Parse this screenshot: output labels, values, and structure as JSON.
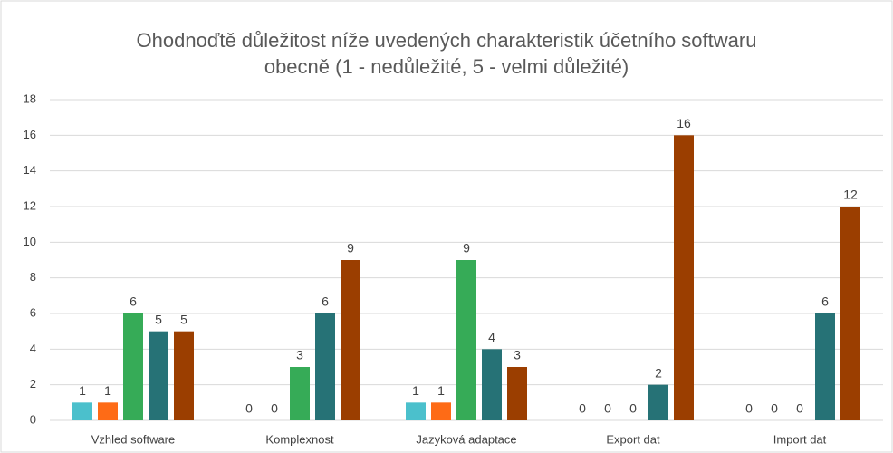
{
  "chart_data": {
    "type": "bar",
    "title": "Ohodnoďtě důležitost níže uvedených charakteristik účetního softwaru obecně (1 - nedůležité, 5 - velmi důležité)",
    "categories": [
      "Vzhled software",
      "Komplexnost",
      "Jazyková adaptace",
      "Export dat",
      "Import dat"
    ],
    "series": [
      {
        "color": "#4bc0cc",
        "values": [
          1,
          0,
          1,
          0,
          0
        ]
      },
      {
        "color": "#fe6b16",
        "values": [
          1,
          0,
          1,
          0,
          0
        ]
      },
      {
        "color": "#36ab57",
        "values": [
          6,
          3,
          9,
          0,
          0
        ]
      },
      {
        "color": "#267276",
        "values": [
          5,
          6,
          4,
          2,
          6
        ]
      },
      {
        "color": "#9b3e00",
        "values": [
          5,
          9,
          3,
          16,
          12
        ]
      }
    ],
    "ylim": [
      0,
      18
    ],
    "yticks": [
      0,
      2,
      4,
      6,
      8,
      10,
      12,
      14,
      16,
      18
    ],
    "grid": true
  }
}
